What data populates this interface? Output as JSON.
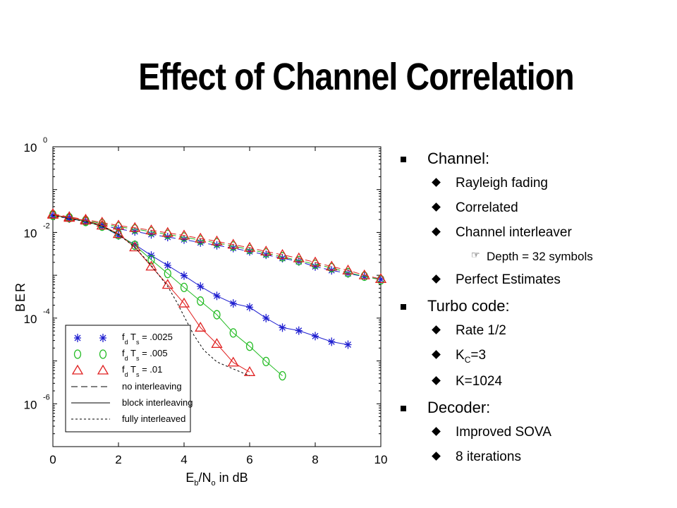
{
  "slide": {
    "title": "Effect of Channel Correlation"
  },
  "bullets": [
    {
      "level": 1,
      "text": "Channel:"
    },
    {
      "level": 2,
      "text": "Rayleigh fading"
    },
    {
      "level": 2,
      "text": "Correlated"
    },
    {
      "level": 2,
      "text": "Channel interleaver"
    },
    {
      "level": 3,
      "text": "Depth = 32 symbols"
    },
    {
      "level": 2,
      "text": "Perfect Estimates"
    },
    {
      "level": 1,
      "text": "Turbo code:"
    },
    {
      "level": 2,
      "text": "Rate 1/2"
    },
    {
      "level": 2,
      "text_main": "K",
      "text_sub": "C",
      "text_tail": "=3"
    },
    {
      "level": 2,
      "text": "K=1024"
    },
    {
      "level": 1,
      "text": "Decoder:"
    },
    {
      "level": 2,
      "text": "Improved SOVA"
    },
    {
      "level": 2,
      "text": "8 iterations"
    }
  ],
  "chart_data": {
    "type": "line",
    "xlabel": "E_b/N_o in dB",
    "ylabel": "BER",
    "xlim": [
      0,
      10
    ],
    "ylim_log10": [
      -7,
      0
    ],
    "yscale": "log",
    "x_ticks": [
      0,
      2,
      4,
      6,
      8,
      10
    ],
    "y_ticks": [
      "10^0",
      "10^-2",
      "10^-4",
      "10^-6"
    ],
    "grid": false,
    "legend_position": "bottom-left",
    "legend": [
      {
        "marker": "star",
        "color": "#1f1fd0",
        "label": "f_d T_s = .0025"
      },
      {
        "marker": "circle",
        "color": "#22bb22",
        "label": "f_d T_s = .005"
      },
      {
        "marker": "triangle",
        "color": "#e02020",
        "label": "f_d T_s = .01"
      },
      {
        "line": "dashed",
        "label": "no interleaving"
      },
      {
        "line": "solid",
        "label": "block interleaving"
      },
      {
        "line": "dotted",
        "label": "fully interleaved"
      }
    ],
    "series": [
      {
        "name": "f_d T_s = .0025 no interleaving",
        "marker": "star",
        "color": "#1f1fd0",
        "line": "dashed",
        "x": [
          0,
          0.5,
          1,
          1.5,
          2,
          2.5,
          3,
          3.5,
          4,
          4.5,
          5,
          5.5,
          6,
          6.5,
          7,
          7.5,
          8,
          8.5,
          9,
          9.5,
          10
        ],
        "y": [
          0.025,
          0.021,
          0.018,
          0.015,
          0.012,
          0.0105,
          0.009,
          0.0078,
          0.0068,
          0.0058,
          0.005,
          0.0043,
          0.0036,
          0.003,
          0.0025,
          0.0021,
          0.0016,
          0.0013,
          0.0011,
          0.00093,
          0.0008
        ]
      },
      {
        "name": "f_d T_s = .005 no interleaving",
        "marker": "circle",
        "color": "#22bb22",
        "line": "dashed",
        "x": [
          0,
          0.5,
          1,
          1.5,
          2,
          2.5,
          3,
          3.5,
          4,
          4.5,
          5,
          5.5,
          6,
          6.5,
          7,
          7.5,
          8,
          8.5,
          9,
          9.5,
          10
        ],
        "y": [
          0.026,
          0.022,
          0.019,
          0.016,
          0.0135,
          0.012,
          0.0104,
          0.009,
          0.0078,
          0.0066,
          0.0057,
          0.0048,
          0.004,
          0.0033,
          0.0027,
          0.0022,
          0.0018,
          0.0015,
          0.00115,
          0.00095,
          0.00078
        ]
      },
      {
        "name": "f_d T_s = .01 no interleaving",
        "marker": "triangle",
        "color": "#e02020",
        "line": "dashed",
        "x": [
          0,
          0.5,
          1,
          1.5,
          2,
          2.5,
          3,
          3.5,
          4,
          4.5,
          5,
          5.5,
          6,
          6.5,
          7,
          7.5,
          8,
          8.5,
          9,
          9.5,
          10
        ],
        "y": [
          0.027,
          0.023,
          0.02,
          0.017,
          0.0145,
          0.0128,
          0.0112,
          0.0098,
          0.0085,
          0.0072,
          0.0062,
          0.0052,
          0.0044,
          0.0036,
          0.003,
          0.0025,
          0.002,
          0.0016,
          0.0013,
          0.001,
          0.00082
        ]
      },
      {
        "name": "f_d T_s = .0025 block interleaving",
        "marker": "star",
        "color": "#1f1fd0",
        "line": "solid",
        "x": [
          0,
          0.5,
          1,
          1.5,
          2,
          2.5,
          3,
          3.5,
          4,
          4.5,
          5,
          5.5,
          6,
          6.5,
          7,
          7.5,
          8,
          8.5,
          9
        ],
        "y": [
          0.025,
          0.022,
          0.018,
          0.014,
          0.0085,
          0.0052,
          0.0029,
          0.0017,
          0.00098,
          0.00055,
          0.00033,
          0.00022,
          0.00018,
          0.0001,
          6e-05,
          5.1e-05,
          3.8e-05,
          2.8e-05,
          2.4e-05
        ]
      },
      {
        "name": "f_d T_s = .005 block interleaving",
        "marker": "circle",
        "color": "#22bb22",
        "line": "solid",
        "x": [
          0,
          0.5,
          1,
          1.5,
          2,
          2.5,
          3,
          3.5,
          4,
          4.5,
          5,
          5.5,
          6,
          6.5,
          7
        ],
        "y": [
          0.025,
          0.022,
          0.018,
          0.014,
          0.0088,
          0.005,
          0.0023,
          0.0011,
          0.00052,
          0.00025,
          0.00012,
          4.5e-05,
          2.2e-05,
          9.7e-06,
          4.5e-06
        ]
      },
      {
        "name": "f_d T_s = .01 block interleaving",
        "marker": "triangle",
        "color": "#e02020",
        "line": "solid",
        "x": [
          0,
          0.5,
          1,
          1.5,
          2,
          2.5,
          3,
          3.5,
          4,
          4.5,
          5,
          5.5,
          6
        ],
        "y": [
          0.026,
          0.022,
          0.019,
          0.0145,
          0.0092,
          0.0045,
          0.0016,
          0.0006,
          0.00022,
          6e-05,
          2.5e-05,
          9.2e-06,
          5.5e-06
        ]
      },
      {
        "name": "fully interleaved",
        "marker": "none",
        "color": "#000000",
        "line": "dotted",
        "x": [
          0,
          0.5,
          1,
          1.5,
          2,
          2.5,
          3,
          3.5,
          3.8,
          4,
          4.3,
          4.6,
          5,
          5.5,
          6
        ],
        "y": [
          0.025,
          0.021,
          0.018,
          0.014,
          0.009,
          0.0045,
          0.0017,
          0.00055,
          0.00022,
          0.00011,
          4e-05,
          1.8e-05,
          9.5e-06,
          6.5e-06,
          4.5e-06
        ]
      }
    ]
  }
}
